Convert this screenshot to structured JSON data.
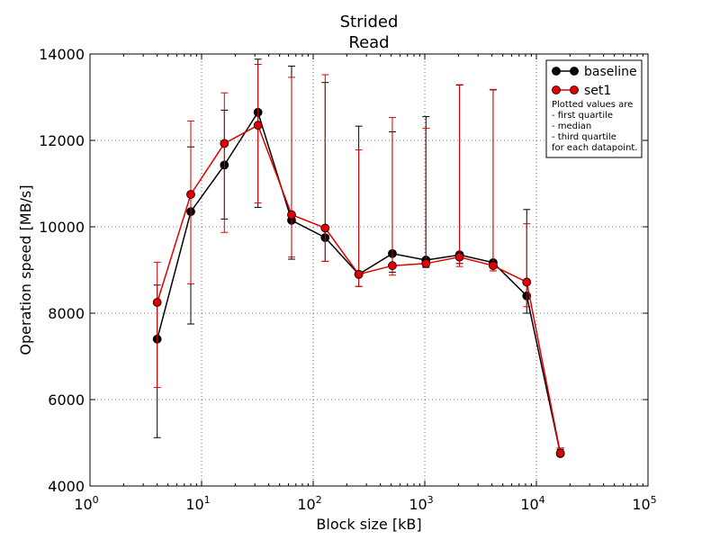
{
  "chart_data": {
    "type": "line",
    "title": [
      "Strided",
      "Read"
    ],
    "xlabel": "Block size [kB]",
    "ylabel": "Operation speed [MB/s]",
    "xscale": "log",
    "xlim": [
      1,
      100000
    ],
    "ylim": [
      4000,
      14000
    ],
    "x_ticks": [
      {
        "value": 1,
        "base": "10",
        "exp": "0"
      },
      {
        "value": 10,
        "base": "10",
        "exp": "1"
      },
      {
        "value": 100,
        "base": "10",
        "exp": "2"
      },
      {
        "value": 1000,
        "base": "10",
        "exp": "3"
      },
      {
        "value": 10000,
        "base": "10",
        "exp": "4"
      },
      {
        "value": 100000,
        "base": "10",
        "exp": "5"
      }
    ],
    "y_ticks": [
      {
        "value": 4000,
        "label": "4000"
      },
      {
        "value": 6000,
        "label": "6000"
      },
      {
        "value": 8000,
        "label": "8000"
      },
      {
        "value": 10000,
        "label": "10000"
      },
      {
        "value": 12000,
        "label": "12000"
      },
      {
        "value": 14000,
        "label": "14000"
      }
    ],
    "grid": true,
    "legend_position": "top-right",
    "x": [
      4,
      8,
      16,
      32,
      64,
      128,
      256,
      512,
      1024,
      2048,
      4096,
      8192,
      16384
    ],
    "series": [
      {
        "name": "baseline",
        "color": "#000000",
        "median": [
          7400,
          10350,
          11430,
          12650,
          10150,
          9750,
          8900,
          9380,
          9230,
          9350,
          9170,
          8400,
          4750
        ],
        "q1": [
          5120,
          7750,
          10180,
          10450,
          9250,
          9200,
          8620,
          8950,
          9060,
          9150,
          8980,
          8000,
          4700
        ],
        "q3": [
          8650,
          11850,
          12700,
          13880,
          13720,
          13340,
          12330,
          12200,
          12550,
          13280,
          13170,
          10400,
          4850
        ]
      },
      {
        "name": "set1",
        "color": "#e00000",
        "median": [
          8250,
          10750,
          11930,
          12350,
          10280,
          9970,
          8900,
          9100,
          9150,
          9300,
          9100,
          8720,
          4760
        ],
        "q1": [
          6280,
          8680,
          9870,
          10550,
          9300,
          9200,
          8620,
          8880,
          9080,
          9080,
          8980,
          8150,
          4700
        ],
        "q3": [
          9180,
          12450,
          13100,
          13760,
          13460,
          13520,
          11780,
          12530,
          12280,
          13290,
          13180,
          10070,
          4880
        ]
      }
    ],
    "legend_note": [
      "Plotted values are",
      " - first quartile",
      " - median",
      " - third quartile",
      "for each datapoint."
    ]
  }
}
